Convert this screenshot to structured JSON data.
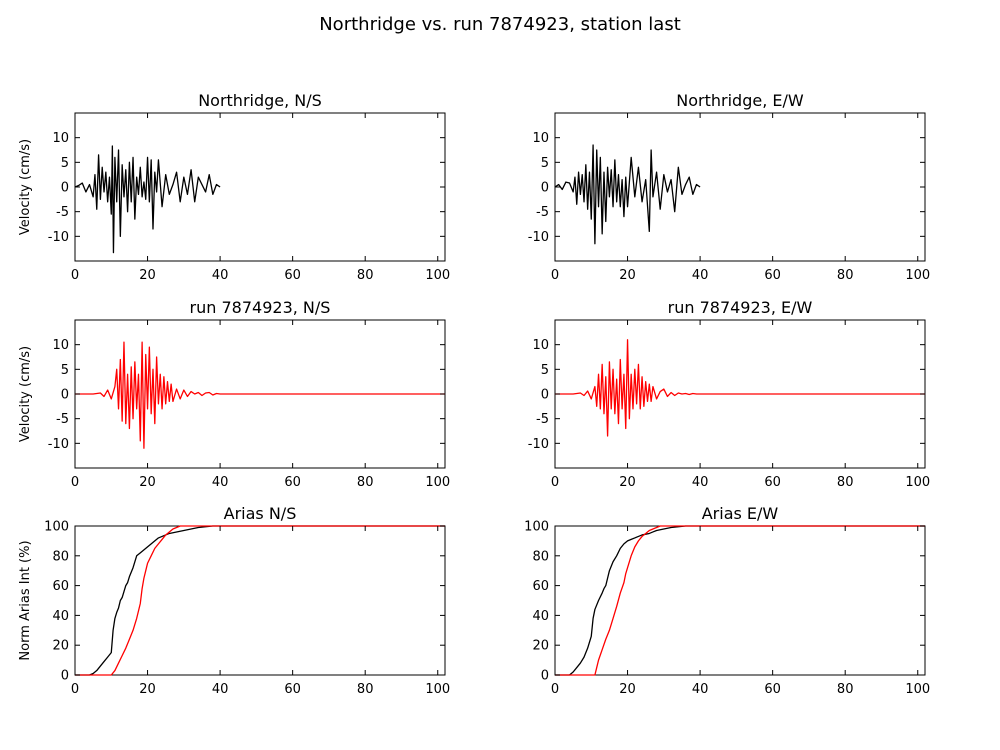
{
  "figure": {
    "title": "Northridge vs. run 7874923, station last"
  },
  "colors": {
    "recorded": "#000000",
    "simulated": "#ff0000",
    "background": "#ffffff"
  },
  "chart_data": [
    {
      "type": "line",
      "title": "Northridge, N/S",
      "xlabel": "",
      "ylabel": "Velocity (cm/s)",
      "xlim": [
        0,
        102
      ],
      "ylim": [
        -15,
        15
      ],
      "xticks": [
        0,
        20,
        40,
        60,
        80,
        100
      ],
      "yticks": [
        -10,
        -5,
        0,
        5,
        10
      ],
      "grid": false,
      "series": [
        {
          "color": "#000000",
          "x": [
            0,
            1,
            2,
            3,
            4,
            5,
            5.5,
            6,
            6.5,
            7,
            7.5,
            8,
            8.5,
            9,
            9.5,
            10,
            10.3,
            10.6,
            11,
            11.5,
            12,
            12.5,
            13,
            13.5,
            14,
            14.5,
            15,
            15.5,
            16,
            16.5,
            17,
            17.5,
            18,
            18.5,
            19,
            19.5,
            20,
            20.5,
            21,
            21.5,
            22,
            22.5,
            23,
            24,
            25,
            26,
            27,
            28,
            29,
            30,
            31,
            32,
            33,
            34,
            35,
            36,
            37,
            38,
            39,
            40
          ],
          "y": [
            0,
            0.3,
            0.8,
            -1,
            0.5,
            -2,
            2.5,
            -4.5,
            6.5,
            -2.5,
            4,
            -1,
            3,
            -3,
            2,
            -5.5,
            8.3,
            -13.3,
            6,
            -3,
            7.5,
            -10,
            4.5,
            -2,
            3.5,
            -5,
            5,
            -3,
            6,
            -6.5,
            2,
            -1.5,
            4,
            -2,
            1,
            -2.5,
            6,
            -3,
            5.5,
            -8.5,
            3,
            -1,
            5.5,
            -4,
            2.5,
            -1.5,
            0.5,
            3,
            -3,
            2,
            -1.5,
            3.5,
            -3,
            2,
            0.5,
            -1,
            2.5,
            -1.5,
            0.5,
            0
          ]
        }
      ]
    },
    {
      "type": "line",
      "title": "Northridge, E/W",
      "xlabel": "",
      "ylabel": "",
      "xlim": [
        0,
        102
      ],
      "ylim": [
        -15,
        15
      ],
      "xticks": [
        0,
        20,
        40,
        60,
        80,
        100
      ],
      "yticks": [
        -10,
        -5,
        0,
        5,
        10
      ],
      "grid": false,
      "series": [
        {
          "color": "#000000",
          "x": [
            0,
            1,
            2,
            3,
            4,
            5,
            5.5,
            6,
            6.5,
            7,
            7.5,
            8,
            8.5,
            9,
            9.5,
            10,
            10.5,
            11,
            11.5,
            12,
            12.5,
            13,
            13.5,
            14,
            14.5,
            15,
            15.5,
            16,
            16.5,
            17,
            17.5,
            18,
            18.5,
            19,
            19.5,
            20,
            21,
            22,
            23,
            24,
            25,
            26,
            26.5,
            27,
            28,
            29,
            30,
            31,
            32,
            33,
            34,
            35,
            36,
            37,
            38,
            39,
            40
          ],
          "y": [
            0,
            0.5,
            -0.5,
            1,
            0.8,
            -1,
            2,
            -3.5,
            3,
            -1.5,
            2.5,
            -3,
            4.5,
            -4.5,
            3,
            -6.5,
            8.5,
            -11.5,
            7.5,
            -4,
            6,
            -9.5,
            3,
            -7,
            4,
            -2,
            3.5,
            -4,
            5.5,
            -3,
            2.5,
            -4,
            1.5,
            -6,
            2,
            -4,
            6,
            -2,
            4,
            -3,
            1.5,
            -9,
            7.5,
            -2,
            3,
            -4.5,
            2.5,
            -1,
            1.5,
            -5,
            4,
            -1.5,
            0.5,
            2,
            -1.5,
            0.5,
            0
          ]
        }
      ]
    },
    {
      "type": "line",
      "title": "run 7874923, N/S",
      "xlabel": "",
      "ylabel": "Velocity (cm/s)",
      "xlim": [
        0,
        102
      ],
      "ylim": [
        -15,
        15
      ],
      "xticks": [
        0,
        20,
        40,
        60,
        80,
        100
      ],
      "yticks": [
        -10,
        -5,
        0,
        5,
        10
      ],
      "grid": false,
      "series": [
        {
          "color": "#ff0000",
          "x": [
            0,
            5,
            7,
            8,
            9,
            10,
            11,
            11.5,
            12,
            12.5,
            13,
            13.5,
            14,
            14.5,
            15,
            15.5,
            16,
            16.5,
            17,
            17.5,
            18,
            18.5,
            19,
            19.5,
            20,
            20.5,
            21,
            21.5,
            22,
            22.5,
            23,
            23.5,
            24,
            24.5,
            25,
            25.5,
            26,
            26.5,
            27,
            28,
            29,
            30,
            31,
            32,
            33,
            34,
            35,
            36,
            37,
            38,
            39,
            40,
            41,
            45,
            50,
            60,
            70,
            80,
            90,
            100,
            102
          ],
          "y": [
            0,
            0,
            0.2,
            -0.5,
            0.8,
            -1,
            1.5,
            5,
            -3,
            7,
            -5.5,
            10.5,
            -6,
            4,
            -7,
            5.5,
            -5,
            6.5,
            -3,
            4,
            -9.5,
            10.5,
            -11,
            8,
            -3,
            9.5,
            -4,
            5,
            -6,
            7.5,
            -2,
            4,
            -3,
            3.5,
            -2,
            2.5,
            -1.5,
            2,
            -1.5,
            1,
            -1,
            0.8,
            -0.5,
            0.5,
            0,
            0.3,
            -0.3,
            0.2,
            0.3,
            -0.2,
            0.1,
            0,
            0,
            0,
            0,
            0,
            0,
            0,
            0,
            0,
            0
          ]
        }
      ]
    },
    {
      "type": "line",
      "title": "run 7874923, E/W",
      "xlabel": "",
      "ylabel": "",
      "xlim": [
        0,
        102
      ],
      "ylim": [
        -15,
        15
      ],
      "xticks": [
        0,
        20,
        40,
        60,
        80,
        100
      ],
      "yticks": [
        -10,
        -5,
        0,
        5,
        10
      ],
      "grid": false,
      "series": [
        {
          "color": "#ff0000",
          "x": [
            0,
            5,
            7,
            8,
            9,
            10,
            11,
            11.5,
            12,
            12.5,
            13,
            13.5,
            14,
            14.5,
            15,
            15.5,
            16,
            16.5,
            17,
            17.5,
            18,
            18.5,
            19,
            19.5,
            20,
            20.5,
            21,
            21.5,
            22,
            22.5,
            23,
            23.5,
            24,
            24.5,
            25,
            25.5,
            26,
            26.5,
            27,
            28,
            29,
            30,
            31,
            32,
            33,
            34,
            35,
            36,
            37,
            38,
            39,
            40,
            41,
            45,
            50,
            60,
            70,
            80,
            90,
            100,
            102
          ],
          "y": [
            0,
            0,
            0.2,
            -0.3,
            0.6,
            -1,
            1.5,
            -2.5,
            4,
            -3,
            6,
            -4,
            3.5,
            -8.5,
            6.5,
            -3,
            5,
            -4,
            3,
            -6,
            7,
            -3,
            4,
            -7,
            11,
            -5,
            4,
            -3,
            5,
            -2,
            6,
            -3,
            3.5,
            -2.5,
            2.5,
            -1.5,
            2,
            -1.5,
            1.5,
            -1,
            0.5,
            1,
            -0.5,
            0.3,
            -0.3,
            0.2,
            0,
            0.1,
            -0.1,
            0.1,
            0,
            0,
            0,
            0,
            0,
            0,
            0,
            0,
            0,
            0,
            0
          ]
        }
      ]
    },
    {
      "type": "line",
      "title": "Arias N/S",
      "xlabel": "",
      "ylabel": "Norm Arias Int (%)",
      "xlim": [
        0,
        102
      ],
      "ylim": [
        0,
        100
      ],
      "xticks": [
        0,
        20,
        40,
        60,
        80,
        100
      ],
      "yticks": [
        0,
        20,
        40,
        60,
        80,
        100
      ],
      "grid": false,
      "series": [
        {
          "color": "#000000",
          "x": [
            0,
            4,
            5,
            6,
            7,
            8,
            9,
            10,
            10.5,
            11,
            11.5,
            12,
            12.5,
            13,
            13.5,
            14,
            14.5,
            15,
            16,
            17,
            18,
            19,
            20,
            21,
            22,
            23,
            24,
            25,
            26,
            28,
            30,
            32,
            34,
            36,
            38,
            40,
            45,
            50,
            60,
            70,
            80,
            90,
            100,
            102
          ],
          "y": [
            0,
            0,
            1,
            3,
            6,
            9,
            12,
            15,
            30,
            38,
            42,
            45,
            50,
            52,
            56,
            60,
            62,
            66,
            72,
            80,
            82,
            84,
            86,
            88,
            90,
            92,
            93,
            94,
            95,
            96,
            97,
            98,
            99,
            99.5,
            100,
            100,
            100,
            100,
            100,
            100,
            100,
            100,
            100,
            100
          ]
        },
        {
          "color": "#ff0000",
          "x": [
            0,
            10,
            11,
            12,
            13,
            14,
            15,
            16,
            17,
            18,
            18.5,
            19,
            19.5,
            20,
            21,
            22,
            23,
            24,
            25,
            26,
            27,
            28,
            29,
            30,
            40,
            50,
            60,
            70,
            80,
            90,
            100,
            102
          ],
          "y": [
            0,
            0,
            3,
            8,
            13,
            18,
            24,
            30,
            38,
            48,
            58,
            65,
            70,
            75,
            80,
            85,
            88,
            91,
            94,
            96,
            98,
            99,
            100,
            100,
            100,
            100,
            100,
            100,
            100,
            100,
            100,
            100
          ]
        }
      ]
    },
    {
      "type": "line",
      "title": "Arias E/W",
      "xlabel": "",
      "ylabel": "",
      "xlim": [
        0,
        102
      ],
      "ylim": [
        0,
        100
      ],
      "xticks": [
        0,
        20,
        40,
        60,
        80,
        100
      ],
      "yticks": [
        0,
        20,
        40,
        60,
        80,
        100
      ],
      "grid": false,
      "series": [
        {
          "color": "#000000",
          "x": [
            0,
            4,
            5,
            6,
            7,
            8,
            9,
            10,
            10.5,
            11,
            12,
            13,
            13.5,
            14,
            14.5,
            15,
            16,
            17,
            18,
            19,
            20,
            21,
            22,
            23,
            24,
            25,
            26,
            27,
            28,
            30,
            32,
            34,
            36,
            38,
            40,
            45,
            50,
            60,
            70,
            80,
            90,
            100,
            102
          ],
          "y": [
            0,
            0,
            2,
            5,
            8,
            12,
            18,
            26,
            38,
            44,
            50,
            55,
            58,
            60,
            65,
            70,
            76,
            80,
            85,
            88,
            90,
            91,
            92,
            93,
            94,
            94.5,
            95,
            96,
            97,
            98,
            99,
            99.5,
            100,
            100,
            100,
            100,
            100,
            100,
            100,
            100,
            100,
            100,
            100
          ]
        },
        {
          "color": "#ff0000",
          "x": [
            0,
            11,
            11.5,
            12,
            13,
            14,
            15,
            16,
            17,
            18,
            19,
            19.5,
            20,
            21,
            22,
            23,
            24,
            25,
            26,
            27,
            28,
            29,
            30,
            40,
            50,
            60,
            70,
            80,
            90,
            100,
            102
          ],
          "y": [
            0,
            0,
            5,
            10,
            17,
            24,
            30,
            38,
            46,
            55,
            62,
            68,
            72,
            80,
            86,
            90,
            93,
            95,
            97,
            98,
            99,
            100,
            100,
            100,
            100,
            100,
            100,
            100,
            100,
            100,
            100
          ]
        }
      ]
    }
  ]
}
